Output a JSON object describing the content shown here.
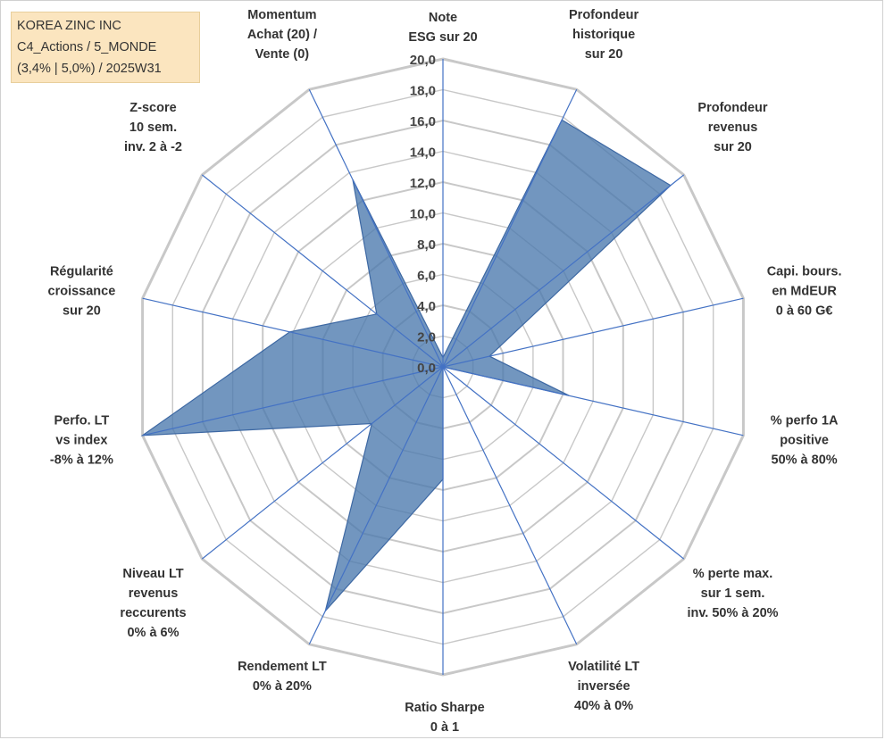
{
  "info_box": {
    "line1": "KOREA ZINC INC",
    "line2": "C4_Actions / 5_MONDE",
    "line3": "(3,4% | 5,0%) / 2025W31"
  },
  "colors": {
    "fill": "#4a78ad",
    "stroke": "#3d68a3",
    "grid": "#c8c8c8",
    "spoke": "#4472c4"
  },
  "chart_data": {
    "type": "radar",
    "r_range": [
      0,
      20
    ],
    "r_ticks": [
      "0,0",
      "2,0",
      "4,0",
      "6,0",
      "8,0",
      "10,0",
      "12,0",
      "14,0",
      "16,0",
      "18,0",
      "20,0"
    ],
    "grid": true,
    "categories": [
      [
        "Note",
        "ESG sur 20"
      ],
      [
        "Profondeur",
        "historique",
        "sur 20"
      ],
      [
        "Profondeur",
        "revenus",
        "sur 20"
      ],
      [
        "Capi. bours.",
        "en MdEUR",
        "0 à 60 G€"
      ],
      [
        "% perfo 1A",
        "positive",
        "50% à 80%"
      ],
      [
        "% perte max.",
        "sur 1 sem.",
        "inv. 50% à 20%"
      ],
      [
        "Volatilité LT",
        "inversée",
        "40% à 0%"
      ],
      [
        "Ratio Sharpe",
        "0 à 1"
      ],
      [
        "Rendement LT",
        "0% à 20%"
      ],
      [
        "Niveau LT",
        "revenus",
        "reccurents",
        "0% à 6%"
      ],
      [
        "Perfo. LT",
        "vs index",
        "-8% à 12%"
      ],
      [
        "Régularité",
        "croissance",
        "sur 20"
      ],
      [
        "Z-score",
        "10 sem.",
        "inv. 2 à -2"
      ],
      [
        "Momentum",
        "Achat (20) /",
        "Vente (0)"
      ]
    ],
    "series": [
      {
        "values": [
          0.6,
          17.8,
          18.9,
          3.1,
          8.4,
          0.0,
          0.0,
          7.3,
          17.6,
          5.9,
          20.0,
          10.2,
          5.5,
          13.5
        ]
      }
    ]
  }
}
